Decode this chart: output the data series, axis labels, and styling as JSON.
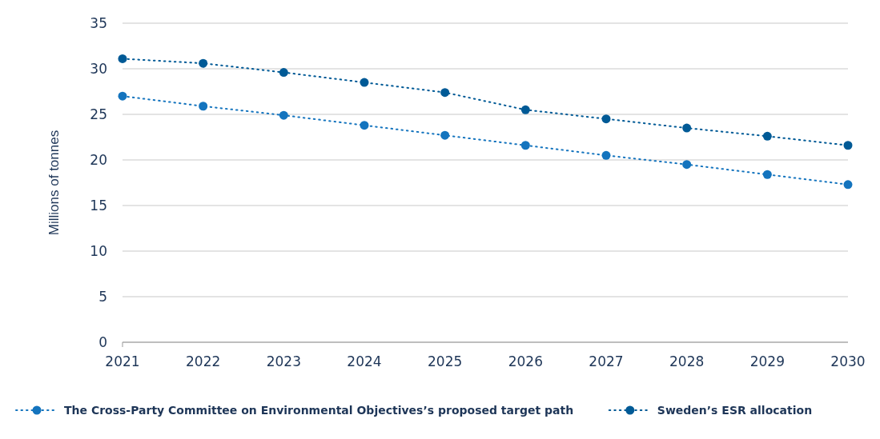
{
  "chart_data": {
    "type": "line",
    "ylabel": "Millions of tonnes",
    "x": [
      2021,
      2022,
      2023,
      2024,
      2025,
      2026,
      2027,
      2028,
      2029,
      2030
    ],
    "xlim": [
      2021,
      2030
    ],
    "xticks": [
      2021,
      2022,
      2023,
      2024,
      2025,
      2026,
      2027,
      2028,
      2029,
      2030
    ],
    "ylim": [
      0,
      35
    ],
    "yticks": [
      0,
      5,
      10,
      15,
      20,
      25,
      30,
      35
    ],
    "series": [
      {
        "name": "The Cross-Party Committee on Environmental Objectives’s proposed target path",
        "color": "#1474be",
        "values": [
          27.0,
          25.9,
          24.9,
          23.8,
          22.7,
          21.6,
          20.5,
          19.5,
          18.4,
          17.3
        ]
      },
      {
        "name": "Sweden’s ESR allocation",
        "color": "#005a96",
        "values": [
          31.1,
          30.6,
          29.6,
          28.5,
          27.4,
          25.5,
          24.5,
          23.5,
          22.6,
          21.6
        ]
      }
    ],
    "grid": "y",
    "legend": "bottom",
    "marker": "circle",
    "line_style": "dotted"
  }
}
